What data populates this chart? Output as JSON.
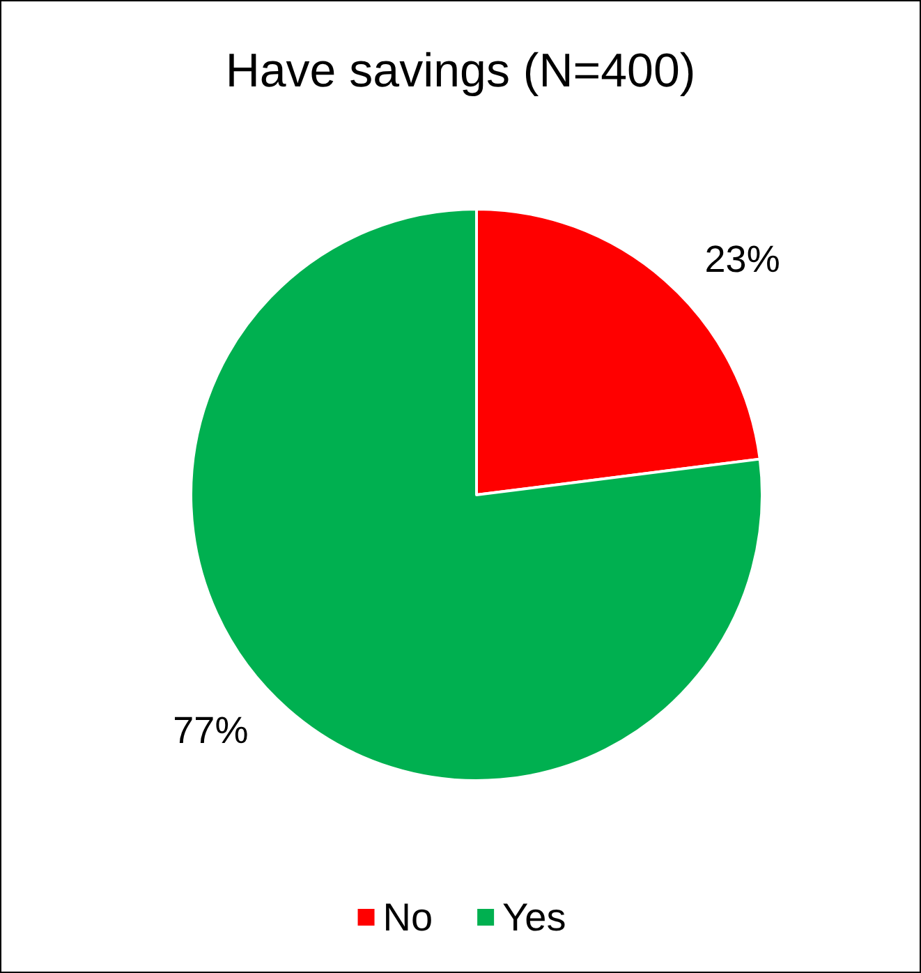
{
  "chart_data": {
    "type": "pie",
    "title": "Have savings (N=400)",
    "categories": [
      "No",
      "Yes"
    ],
    "values": [
      23,
      77
    ],
    "colors": [
      "#ff0000",
      "#00b050"
    ],
    "value_labels": [
      "23%",
      "77%"
    ],
    "legend": "bottom"
  }
}
